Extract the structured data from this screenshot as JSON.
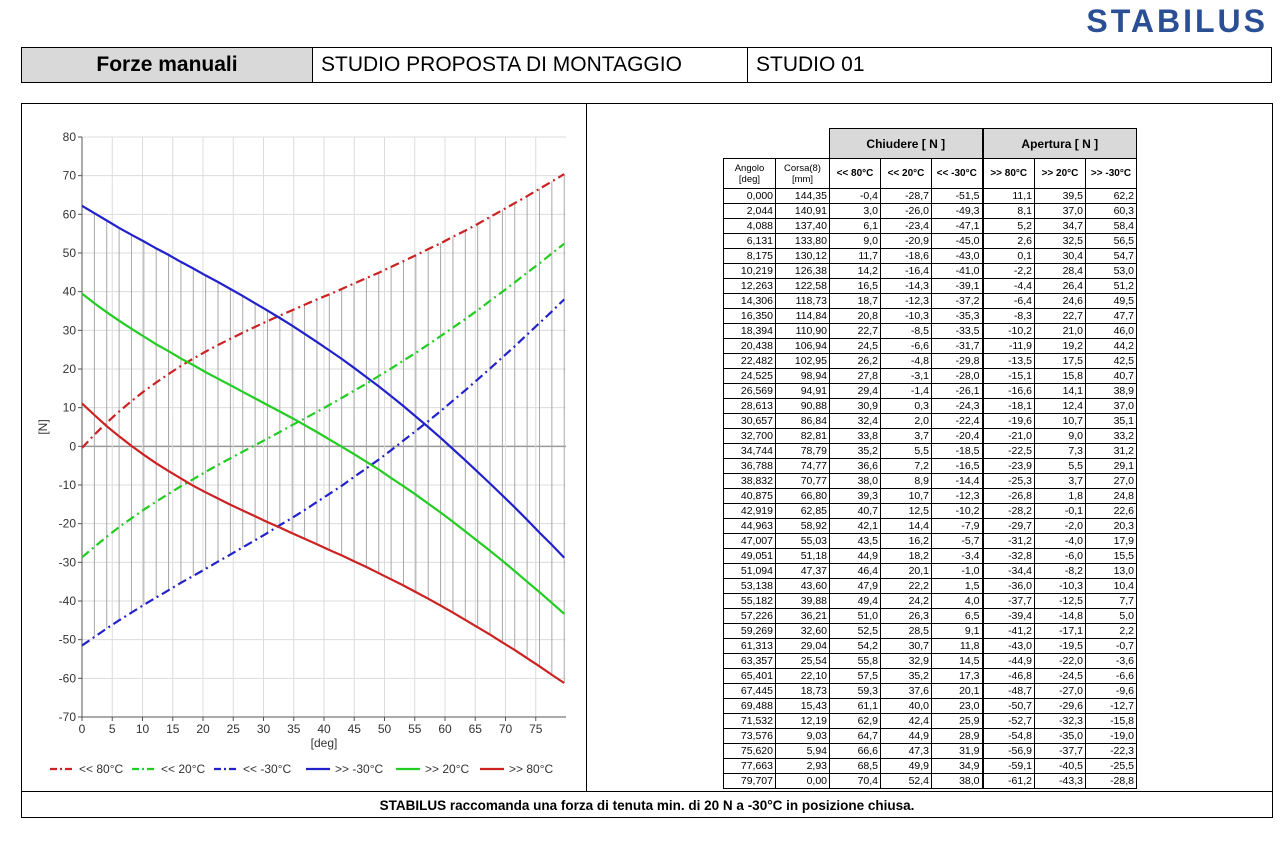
{
  "logo": "STABILUS",
  "header": {
    "cell1": "Forze manuali",
    "cell2": "STUDIO PROPOSTA DI MONTAGGIO",
    "cell3": "STUDIO 01"
  },
  "footer": "STABILUS raccomanda una forza di tenuta min. di 20 N a -30°C in posizione chiusa.",
  "table": {
    "group_headers": [
      "Chiudere [ N ]",
      "Apertura [ N ]"
    ],
    "columns": [
      "Angolo\n[deg]",
      "Corsa(8)\n[mm]",
      "<< 80°C",
      "<< 20°C",
      "<< -30°C",
      ">> 80°C",
      ">> 20°C",
      ">> -30°C"
    ],
    "rows": [
      [
        "0,000",
        "144,35",
        "-0,4",
        "-28,7",
        "-51,5",
        "11,1",
        "39,5",
        "62,2"
      ],
      [
        "2,044",
        "140,91",
        "3,0",
        "-26,0",
        "-49,3",
        "8,1",
        "37,0",
        "60,3"
      ],
      [
        "4,088",
        "137,40",
        "6,1",
        "-23,4",
        "-47,1",
        "5,2",
        "34,7",
        "58,4"
      ],
      [
        "6,131",
        "133,80",
        "9,0",
        "-20,9",
        "-45,0",
        "2,6",
        "32,5",
        "56,5"
      ],
      [
        "8,175",
        "130,12",
        "11,7",
        "-18,6",
        "-43,0",
        "0,1",
        "30,4",
        "54,7"
      ],
      [
        "10,219",
        "126,38",
        "14,2",
        "-16,4",
        "-41,0",
        "-2,2",
        "28,4",
        "53,0"
      ],
      [
        "12,263",
        "122,58",
        "16,5",
        "-14,3",
        "-39,1",
        "-4,4",
        "26,4",
        "51,2"
      ],
      [
        "14,306",
        "118,73",
        "18,7",
        "-12,3",
        "-37,2",
        "-6,4",
        "24,6",
        "49,5"
      ],
      [
        "16,350",
        "114,84",
        "20,8",
        "-10,3",
        "-35,3",
        "-8,3",
        "22,7",
        "47,7"
      ],
      [
        "18,394",
        "110,90",
        "22,7",
        "-8,5",
        "-33,5",
        "-10,2",
        "21,0",
        "46,0"
      ],
      [
        "20,438",
        "106,94",
        "24,5",
        "-6,6",
        "-31,7",
        "-11,9",
        "19,2",
        "44,2"
      ],
      [
        "22,482",
        "102,95",
        "26,2",
        "-4,8",
        "-29,8",
        "-13,5",
        "17,5",
        "42,5"
      ],
      [
        "24,525",
        "98,94",
        "27,8",
        "-3,1",
        "-28,0",
        "-15,1",
        "15,8",
        "40,7"
      ],
      [
        "26,569",
        "94,91",
        "29,4",
        "-1,4",
        "-26,1",
        "-16,6",
        "14,1",
        "38,9"
      ],
      [
        "28,613",
        "90,88",
        "30,9",
        "0,3",
        "-24,3",
        "-18,1",
        "12,4",
        "37,0"
      ],
      [
        "30,657",
        "86,84",
        "32,4",
        "2,0",
        "-22,4",
        "-19,6",
        "10,7",
        "35,1"
      ],
      [
        "32,700",
        "82,81",
        "33,8",
        "3,7",
        "-20,4",
        "-21,0",
        "9,0",
        "33,2"
      ],
      [
        "34,744",
        "78,79",
        "35,2",
        "5,5",
        "-18,5",
        "-22,5",
        "7,3",
        "31,2"
      ],
      [
        "36,788",
        "74,77",
        "36,6",
        "7,2",
        "-16,5",
        "-23,9",
        "5,5",
        "29,1"
      ],
      [
        "38,832",
        "70,77",
        "38,0",
        "8,9",
        "-14,4",
        "-25,3",
        "3,7",
        "27,0"
      ],
      [
        "40,875",
        "66,80",
        "39,3",
        "10,7",
        "-12,3",
        "-26,8",
        "1,8",
        "24,8"
      ],
      [
        "42,919",
        "62,85",
        "40,7",
        "12,5",
        "-10,2",
        "-28,2",
        "-0,1",
        "22,6"
      ],
      [
        "44,963",
        "58,92",
        "42,1",
        "14,4",
        "-7,9",
        "-29,7",
        "-2,0",
        "20,3"
      ],
      [
        "47,007",
        "55,03",
        "43,5",
        "16,2",
        "-5,7",
        "-31,2",
        "-4,0",
        "17,9"
      ],
      [
        "49,051",
        "51,18",
        "44,9",
        "18,2",
        "-3,4",
        "-32,8",
        "-6,0",
        "15,5"
      ],
      [
        "51,094",
        "47,37",
        "46,4",
        "20,1",
        "-1,0",
        "-34,4",
        "-8,2",
        "13,0"
      ],
      [
        "53,138",
        "43,60",
        "47,9",
        "22,2",
        "1,5",
        "-36,0",
        "-10,3",
        "10,4"
      ],
      [
        "55,182",
        "39,88",
        "49,4",
        "24,2",
        "4,0",
        "-37,7",
        "-12,5",
        "7,7"
      ],
      [
        "57,226",
        "36,21",
        "51,0",
        "26,3",
        "6,5",
        "-39,4",
        "-14,8",
        "5,0"
      ],
      [
        "59,269",
        "32,60",
        "52,5",
        "28,5",
        "9,1",
        "-41,2",
        "-17,1",
        "2,2"
      ],
      [
        "61,313",
        "29,04",
        "54,2",
        "30,7",
        "11,8",
        "-43,0",
        "-19,5",
        "-0,7"
      ],
      [
        "63,357",
        "25,54",
        "55,8",
        "32,9",
        "14,5",
        "-44,9",
        "-22,0",
        "-3,6"
      ],
      [
        "65,401",
        "22,10",
        "57,5",
        "35,2",
        "17,3",
        "-46,8",
        "-24,5",
        "-6,6"
      ],
      [
        "67,445",
        "18,73",
        "59,3",
        "37,6",
        "20,1",
        "-48,7",
        "-27,0",
        "-9,6"
      ],
      [
        "69,488",
        "15,43",
        "61,1",
        "40,0",
        "23,0",
        "-50,7",
        "-29,6",
        "-12,7"
      ],
      [
        "71,532",
        "12,19",
        "62,9",
        "42,4",
        "25,9",
        "-52,7",
        "-32,3",
        "-15,8"
      ],
      [
        "73,576",
        "9,03",
        "64,7",
        "44,9",
        "28,9",
        "-54,8",
        "-35,0",
        "-19,0"
      ],
      [
        "75,620",
        "5,94",
        "66,6",
        "47,3",
        "31,9",
        "-56,9",
        "-37,7",
        "-22,3"
      ],
      [
        "77,663",
        "2,93",
        "68,5",
        "49,9",
        "34,9",
        "-59,1",
        "-40,5",
        "-25,5"
      ],
      [
        "79,707",
        "0,00",
        "70,4",
        "52,4",
        "38,0",
        "-61,2",
        "-43,3",
        "-28,8"
      ]
    ]
  },
  "chart_data": {
    "type": "line",
    "xlabel": "[deg]",
    "ylabel": "[N]",
    "xlim": [
      0,
      80
    ],
    "ylim": [
      -70,
      80
    ],
    "xticks": [
      0,
      5,
      10,
      15,
      20,
      25,
      30,
      35,
      40,
      45,
      50,
      55,
      60,
      65,
      70,
      75
    ],
    "yticks": [
      80,
      70,
      60,
      50,
      40,
      30,
      20,
      10,
      0,
      -10,
      -20,
      -30,
      -40,
      -50,
      -60,
      -70
    ],
    "grid": true,
    "legend_position": "bottom",
    "x": [
      0,
      2.044,
      4.088,
      6.131,
      8.175,
      10.219,
      12.263,
      14.306,
      16.35,
      18.394,
      20.438,
      22.482,
      24.525,
      26.569,
      28.613,
      30.657,
      32.7,
      34.744,
      36.788,
      38.832,
      40.875,
      42.919,
      44.963,
      47.007,
      49.051,
      51.094,
      53.138,
      55.182,
      57.226,
      59.269,
      61.313,
      63.357,
      65.401,
      67.445,
      69.488,
      71.532,
      73.576,
      75.62,
      77.663,
      79.707
    ],
    "series": [
      {
        "name": "<< 80°C",
        "color": "#cc2222",
        "style": "dash-dot",
        "values": [
          -0.4,
          3.0,
          6.1,
          9.0,
          11.7,
          14.2,
          16.5,
          18.7,
          20.8,
          22.7,
          24.5,
          26.2,
          27.8,
          29.4,
          30.9,
          32.4,
          33.8,
          35.2,
          36.6,
          38.0,
          39.3,
          40.7,
          42.1,
          43.5,
          44.9,
          46.4,
          47.9,
          49.4,
          51.0,
          52.5,
          54.2,
          55.8,
          57.5,
          59.3,
          61.1,
          62.9,
          64.7,
          66.6,
          68.5,
          70.4
        ]
      },
      {
        "name": "<< 20°C",
        "color": "#22cc22",
        "style": "dash-dot",
        "values": [
          -28.7,
          -26.0,
          -23.4,
          -20.9,
          -18.6,
          -16.4,
          -14.3,
          -12.3,
          -10.3,
          -8.5,
          -6.6,
          -4.8,
          -3.1,
          -1.4,
          0.3,
          2.0,
          3.7,
          5.5,
          7.2,
          8.9,
          10.7,
          12.5,
          14.4,
          16.2,
          18.2,
          20.1,
          22.2,
          24.2,
          26.3,
          28.5,
          30.7,
          32.9,
          35.2,
          37.6,
          40.0,
          42.4,
          44.9,
          47.3,
          49.9,
          52.4
        ]
      },
      {
        "name": "<< -30°C",
        "color": "#2222cc",
        "style": "dash-dot",
        "values": [
          -51.5,
          -49.3,
          -47.1,
          -45.0,
          -43.0,
          -41.0,
          -39.1,
          -37.2,
          -35.3,
          -33.5,
          -31.7,
          -29.8,
          -28.0,
          -26.1,
          -24.3,
          -22.4,
          -20.4,
          -18.5,
          -16.5,
          -14.4,
          -12.3,
          -10.2,
          -7.9,
          -5.7,
          -3.4,
          -1.0,
          1.5,
          4.0,
          6.5,
          9.1,
          11.8,
          14.5,
          17.3,
          20.1,
          23.0,
          25.9,
          28.9,
          31.9,
          34.9,
          38.0
        ]
      },
      {
        "name": ">> -30°C",
        "color": "#2222cc",
        "style": "solid",
        "values": [
          62.2,
          60.3,
          58.4,
          56.5,
          54.7,
          53.0,
          51.2,
          49.5,
          47.7,
          46.0,
          44.2,
          42.5,
          40.7,
          38.9,
          37.0,
          35.1,
          33.2,
          31.2,
          29.1,
          27.0,
          24.8,
          22.6,
          20.3,
          17.9,
          15.5,
          13.0,
          10.4,
          7.7,
          5.0,
          2.2,
          -0.7,
          -3.6,
          -6.6,
          -9.6,
          -12.7,
          -15.8,
          -19.0,
          -22.3,
          -25.5,
          -28.8
        ]
      },
      {
        "name": ">> 20°C",
        "color": "#22cc22",
        "style": "solid",
        "values": [
          39.5,
          37.0,
          34.7,
          32.5,
          30.4,
          28.4,
          26.4,
          24.6,
          22.7,
          21.0,
          19.2,
          17.5,
          15.8,
          14.1,
          12.4,
          10.7,
          9.0,
          7.3,
          5.5,
          3.7,
          1.8,
          -0.1,
          -2.0,
          -4.0,
          -6.0,
          -8.2,
          -10.3,
          -12.5,
          -14.8,
          -17.1,
          -19.5,
          -22.0,
          -24.5,
          -27.0,
          -29.6,
          -32.3,
          -35.0,
          -37.7,
          -40.5,
          -43.3
        ]
      },
      {
        "name": ">> 80°C",
        "color": "#cc2222",
        "style": "solid",
        "values": [
          11.1,
          8.1,
          5.2,
          2.6,
          0.1,
          -2.2,
          -4.4,
          -6.4,
          -8.3,
          -10.2,
          -11.9,
          -13.5,
          -15.1,
          -16.6,
          -18.1,
          -19.6,
          -21.0,
          -22.5,
          -23.9,
          -25.3,
          -26.8,
          -28.2,
          -29.7,
          -31.2,
          -32.8,
          -34.4,
          -36.0,
          -37.7,
          -39.4,
          -41.2,
          -43.0,
          -44.9,
          -46.8,
          -48.7,
          -50.7,
          -52.7,
          -54.8,
          -56.9,
          -59.1,
          -61.2
        ]
      }
    ]
  }
}
